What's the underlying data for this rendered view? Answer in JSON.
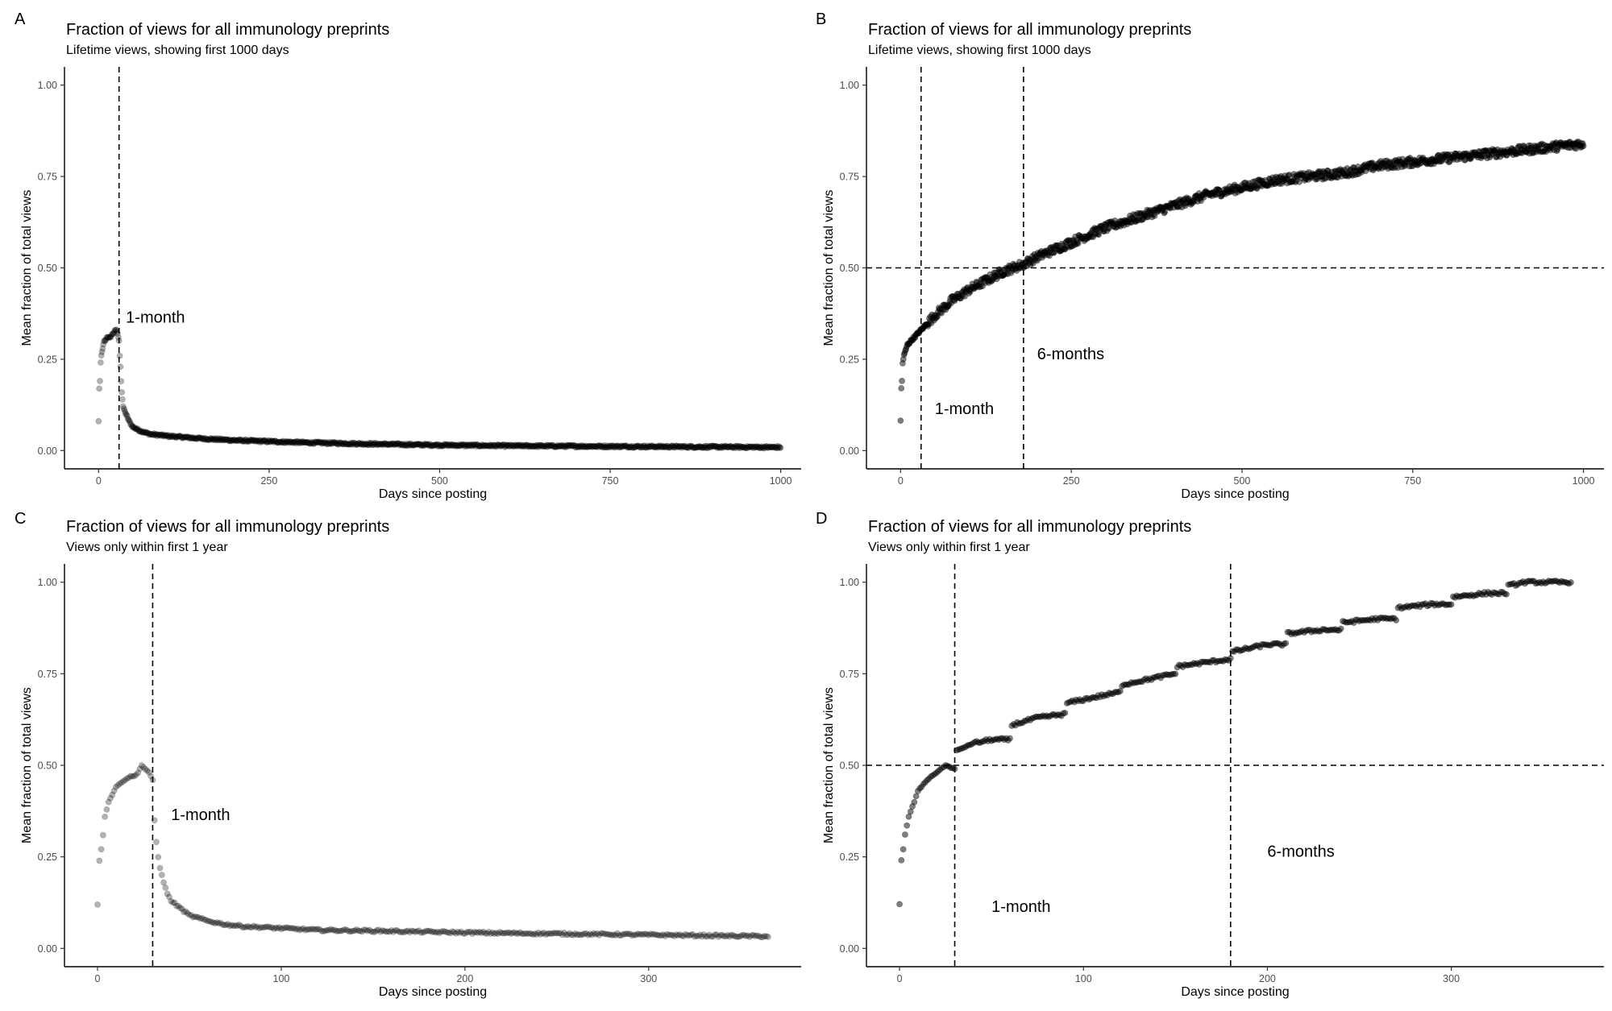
{
  "chart_data": [
    {
      "panel": "A",
      "type": "scatter",
      "title": "Fraction of views for all immunology preprints",
      "subtitle": "Lifetime views, showing first 1000 days",
      "xlabel": "Days since posting",
      "ylabel": "Mean fraction of total views",
      "xlim": [
        -50,
        1030
      ],
      "ylim": [
        -0.05,
        1.05
      ],
      "xticks": [
        0,
        250,
        500,
        750,
        1000
      ],
      "yticks": [
        0.0,
        0.25,
        0.5,
        0.75,
        1.0
      ],
      "ytick_labels": [
        "0.00",
        "0.25",
        "0.50",
        "0.75",
        "1.00"
      ],
      "point_color": "#000000",
      "point_alpha": 0.3,
      "series": [
        {
          "name": "mean fraction",
          "x": [
            0,
            1,
            2,
            3,
            4,
            5,
            6,
            7,
            8,
            10,
            12,
            14,
            16,
            18,
            20,
            22,
            24,
            26,
            28,
            30,
            31,
            32,
            33,
            34,
            36,
            40,
            45,
            50,
            60,
            75,
            100,
            150,
            200,
            250,
            300,
            400,
            500,
            600,
            700,
            800,
            900,
            1000
          ],
          "y": [
            0.08,
            0.17,
            0.19,
            0.24,
            0.26,
            0.27,
            0.28,
            0.29,
            0.3,
            0.3,
            0.31,
            0.31,
            0.31,
            0.31,
            0.32,
            0.32,
            0.33,
            0.33,
            0.32,
            0.3,
            0.26,
            0.23,
            0.19,
            0.16,
            0.12,
            0.1,
            0.08,
            0.065,
            0.055,
            0.045,
            0.04,
            0.033,
            0.028,
            0.025,
            0.022,
            0.018,
            0.015,
            0.013,
            0.012,
            0.011,
            0.01,
            0.009
          ]
        }
      ],
      "vlines": [
        30
      ],
      "hlines": [],
      "annotations": [
        {
          "text": "1-month",
          "x": 40,
          "y": 0.35
        }
      ]
    },
    {
      "panel": "B",
      "type": "scatter",
      "title": "Fraction of views for all immunology preprints",
      "subtitle": "Lifetime views, showing first 1000 days",
      "xlabel": "Days since posting",
      "ylabel": "Mean fraction of total views",
      "xlim": [
        -50,
        1030
      ],
      "ylim": [
        -0.05,
        1.05
      ],
      "xticks": [
        0,
        250,
        500,
        750,
        1000
      ],
      "yticks": [
        0.0,
        0.25,
        0.5,
        0.75,
        1.0
      ],
      "ytick_labels": [
        "0.00",
        "0.25",
        "0.50",
        "0.75",
        "1.00"
      ],
      "point_color": "#000000",
      "point_alpha": 0.5,
      "series": [
        {
          "name": "cumulative mean fraction",
          "x": [
            0,
            1,
            2,
            3,
            5,
            10,
            20,
            30,
            50,
            75,
            100,
            150,
            180,
            200,
            250,
            300,
            350,
            400,
            450,
            500,
            550,
            600,
            650,
            700,
            750,
            800,
            850,
            900,
            950,
            1000
          ],
          "y": [
            0.08,
            0.17,
            0.19,
            0.24,
            0.26,
            0.29,
            0.31,
            0.33,
            0.37,
            0.41,
            0.44,
            0.49,
            0.51,
            0.53,
            0.57,
            0.61,
            0.64,
            0.67,
            0.7,
            0.72,
            0.74,
            0.75,
            0.76,
            0.78,
            0.79,
            0.8,
            0.81,
            0.82,
            0.83,
            0.84
          ]
        }
      ],
      "vlines": [
        30,
        180
      ],
      "hlines": [
        0.5
      ],
      "annotations": [
        {
          "text": "1-month",
          "x": 50,
          "y": 0.1
        },
        {
          "text": "6-months",
          "x": 200,
          "y": 0.25
        }
      ]
    },
    {
      "panel": "C",
      "type": "scatter",
      "title": "Fraction of views for all immunology preprints",
      "subtitle": "Views only within first 1 year",
      "xlabel": "Days since posting",
      "ylabel": "Mean fraction of total views",
      "xlim": [
        -18,
        383
      ],
      "ylim": [
        -0.05,
        1.05
      ],
      "xticks": [
        0,
        100,
        200,
        300
      ],
      "yticks": [
        0.0,
        0.25,
        0.5,
        0.75,
        1.0
      ],
      "ytick_labels": [
        "0.00",
        "0.25",
        "0.50",
        "0.75",
        "1.00"
      ],
      "point_color": "#000000",
      "point_alpha": 0.3,
      "series": [
        {
          "name": "mean fraction",
          "x": [
            0,
            1,
            2,
            3,
            4,
            5,
            6,
            8,
            10,
            12,
            15,
            18,
            20,
            22,
            24,
            26,
            28,
            30,
            31,
            32,
            33,
            34,
            36,
            38,
            40,
            45,
            50,
            60,
            70,
            80,
            100,
            120,
            150,
            200,
            250,
            300,
            330,
            365
          ],
          "y": [
            0.12,
            0.24,
            0.27,
            0.31,
            0.36,
            0.38,
            0.4,
            0.42,
            0.44,
            0.45,
            0.46,
            0.47,
            0.47,
            0.48,
            0.5,
            0.49,
            0.48,
            0.46,
            0.35,
            0.29,
            0.25,
            0.22,
            0.18,
            0.15,
            0.13,
            0.11,
            0.09,
            0.075,
            0.065,
            0.06,
            0.055,
            0.05,
            0.048,
            0.043,
            0.04,
            0.037,
            0.035,
            0.033
          ]
        }
      ],
      "vlines": [
        30
      ],
      "hlines": [],
      "annotations": [
        {
          "text": "1-month",
          "x": 40,
          "y": 0.35
        }
      ]
    },
    {
      "panel": "D",
      "type": "scatter",
      "title": "Fraction of views for all immunology preprints",
      "subtitle": "Views only within first 1 year",
      "xlabel": "Days since posting",
      "ylabel": "Mean fraction of total views",
      "xlim": [
        -18,
        383
      ],
      "ylim": [
        -0.05,
        1.05
      ],
      "xticks": [
        0,
        100,
        200,
        300
      ],
      "yticks": [
        0.0,
        0.25,
        0.5,
        0.75,
        1.0
      ],
      "ytick_labels": [
        "0.00",
        "0.25",
        "0.50",
        "0.75",
        "1.00"
      ],
      "point_color": "#000000",
      "point_alpha": 0.5,
      "series": [
        {
          "name": "cumulative mean fraction",
          "x": [
            0,
            1,
            2,
            3,
            5,
            8,
            10,
            15,
            20,
            25,
            30,
            31,
            40,
            50,
            60,
            61,
            75,
            90,
            91,
            110,
            120,
            121,
            140,
            150,
            151,
            165,
            180,
            181,
            200,
            210,
            211,
            230,
            240,
            241,
            260,
            270,
            271,
            290,
            300,
            301,
            320,
            330,
            331,
            340,
            365
          ],
          "y": [
            0.12,
            0.24,
            0.27,
            0.31,
            0.36,
            0.4,
            0.43,
            0.46,
            0.48,
            0.5,
            0.49,
            0.54,
            0.56,
            0.57,
            0.57,
            0.61,
            0.63,
            0.64,
            0.67,
            0.69,
            0.7,
            0.72,
            0.74,
            0.75,
            0.77,
            0.78,
            0.79,
            0.81,
            0.83,
            0.83,
            0.86,
            0.87,
            0.87,
            0.89,
            0.9,
            0.9,
            0.93,
            0.94,
            0.94,
            0.96,
            0.97,
            0.97,
            0.99,
            1.0,
            1.0
          ]
        }
      ],
      "vlines": [
        30,
        180
      ],
      "hlines": [
        0.5
      ],
      "annotations": [
        {
          "text": "1-month",
          "x": 50,
          "y": 0.1
        },
        {
          "text": "6-months",
          "x": 200,
          "y": 0.25
        }
      ]
    }
  ]
}
